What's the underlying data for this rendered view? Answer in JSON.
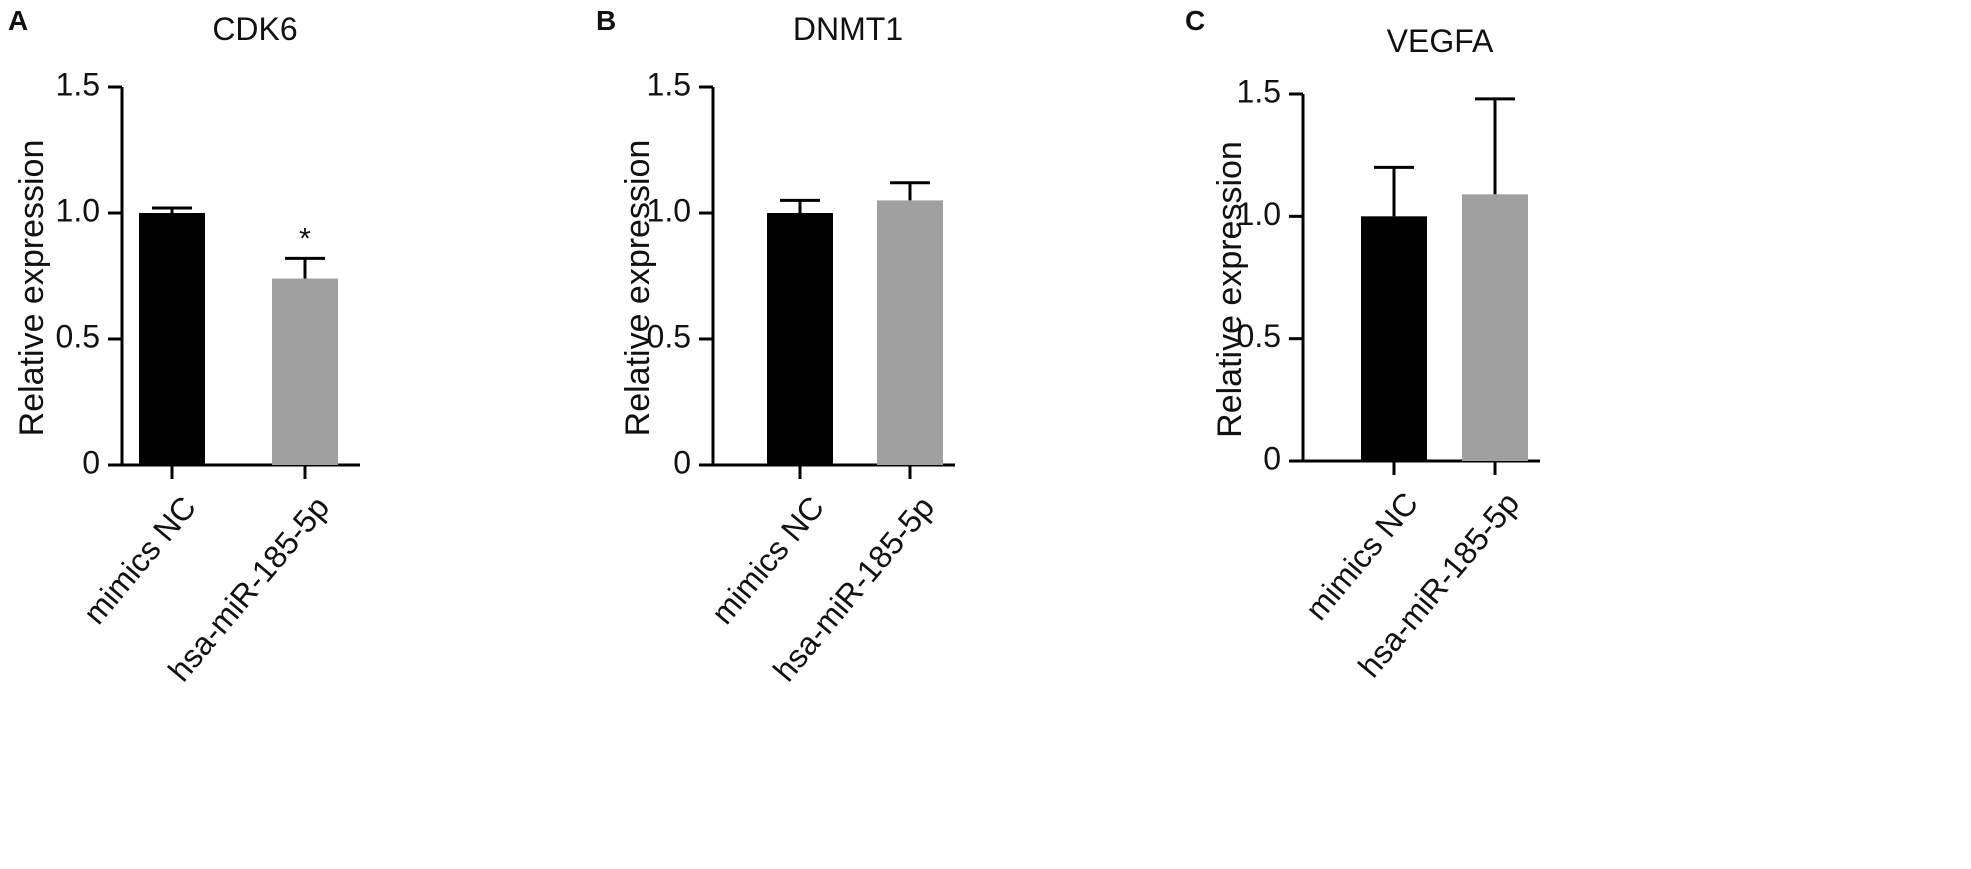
{
  "chart_data": [
    {
      "type": "bar",
      "panel": "A",
      "title": "CDK6",
      "y_label": "Relative expression",
      "categories": [
        "mimics NC",
        "hsa-miR-185-5p"
      ],
      "values": [
        1.0,
        0.74
      ],
      "errors": [
        0.02,
        0.08
      ],
      "value_annotations": [
        null,
        "*"
      ],
      "colors": [
        "#000000",
        "#a0a0a0"
      ],
      "ylim": [
        0,
        1.5
      ],
      "yticks": [
        0,
        0.5,
        {
          "value": 1,
          "label": "1.0"
        },
        1.5
      ]
    },
    {
      "type": "bar",
      "panel": "B",
      "title": "DNMT1",
      "y_label": "Relative expression",
      "categories": [
        "mimics NC",
        "hsa-miR-185-5p"
      ],
      "values": [
        1.0,
        1.05
      ],
      "errors": [
        0.05,
        0.07
      ],
      "colors": [
        "#000000",
        "#a0a0a0"
      ],
      "ylim": [
        0,
        1.5
      ],
      "yticks": [
        0,
        0.5,
        {
          "value": 1,
          "label": "1.0"
        },
        1.5
      ]
    },
    {
      "type": "bar",
      "panel": "C",
      "title": "VEGFA",
      "y_label": "Relative expression",
      "categories": [
        "mimics NC",
        "hsa-miR-185-5p"
      ],
      "values": [
        1.0,
        1.09
      ],
      "errors": [
        0.2,
        0.39
      ],
      "colors": [
        "#000000",
        "#a0a0a0"
      ],
      "ylim": [
        0,
        1.5
      ],
      "yticks": [
        0,
        0.5,
        {
          "value": 1,
          "label": "1.0"
        },
        1.5
      ]
    }
  ]
}
